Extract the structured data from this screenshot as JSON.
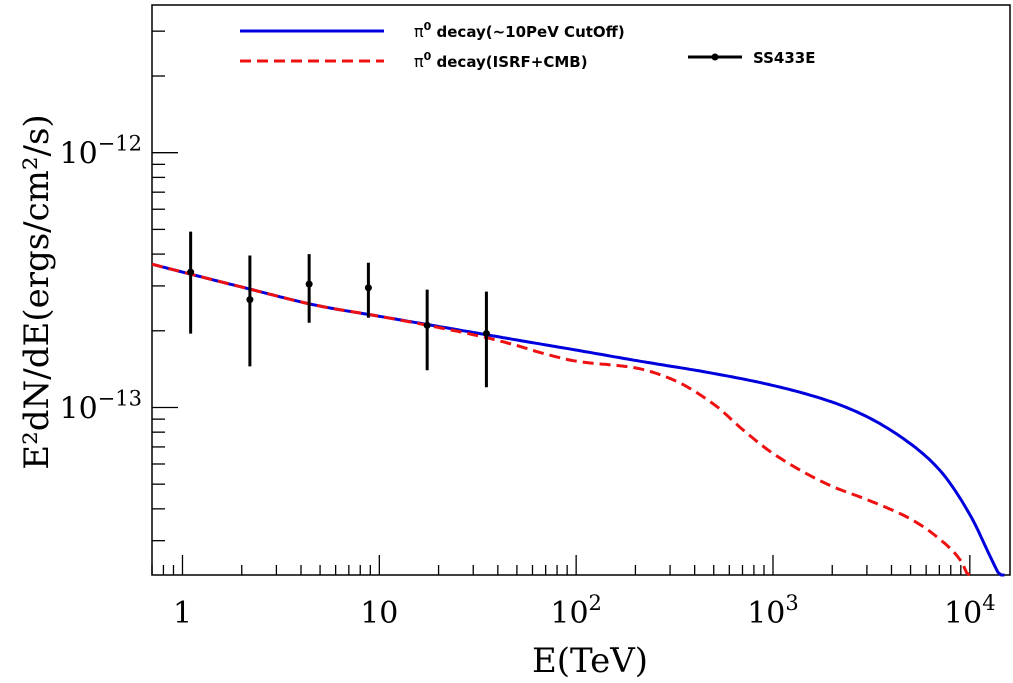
{
  "chart_data": {
    "type": "line",
    "xlabel": "E(TeV)",
    "ylabel": "E²dN/dE(ergs/cm²/s)",
    "x_scale": "log",
    "y_scale": "log",
    "xlim": [
      0.7,
      16000
    ],
    "ylim": [
      2.2e-14,
      3.8e-12
    ],
    "grid": false,
    "legend_position": "top",
    "x_tick_labels": [
      {
        "value": 1,
        "base": "1",
        "exp": ""
      },
      {
        "value": 10,
        "base": "10",
        "exp": ""
      },
      {
        "value": 100,
        "base": "10",
        "exp": "2"
      },
      {
        "value": 1000,
        "base": "10",
        "exp": "3"
      },
      {
        "value": 10000,
        "base": "10",
        "exp": "4"
      }
    ],
    "y_tick_labels": [
      {
        "value": 1e-12,
        "base": "10",
        "exp": "−12"
      },
      {
        "value": 1e-13,
        "base": "10",
        "exp": "−13"
      }
    ],
    "series": [
      {
        "name": "π⁰ decay(~10PeV CutOff)",
        "legend_base": "π",
        "legend_sup": "0",
        "legend_rest": " decay(~10PeV CutOff)",
        "style": "solid",
        "color": "#0000dd",
        "x": [
          0.7,
          1,
          2,
          5,
          10,
          20,
          50,
          100,
          200,
          500,
          1000,
          2000,
          3000,
          5000,
          7000,
          10000,
          13000,
          15000
        ],
        "y": [
          3.65e-13,
          3.4e-13,
          2.97e-13,
          2.5e-13,
          2.28e-13,
          2.08e-13,
          1.84e-13,
          1.68e-13,
          1.53e-13,
          1.36e-13,
          1.22e-13,
          1.05e-13,
          9.2e-14,
          7.2e-14,
          5.7e-14,
          3.8e-14,
          2.5e-14,
          2e-14
        ]
      },
      {
        "name": "π⁰ decay(ISRF+CMB)",
        "legend_base": "π",
        "legend_sup": "0",
        "legend_rest": " decay(ISRF+CMB)",
        "style": "dashed",
        "color": "#ee1111",
        "x": [
          0.7,
          1,
          2,
          5,
          10,
          20,
          35,
          50,
          70,
          100,
          200,
          300,
          500,
          700,
          1000,
          2000,
          3000,
          5000,
          7000,
          9000,
          10000
        ],
        "y": [
          3.65e-13,
          3.4e-13,
          2.97e-13,
          2.5e-13,
          2.28e-13,
          2.06e-13,
          1.88e-13,
          1.75e-13,
          1.62e-13,
          1.52e-13,
          1.43e-13,
          1.3e-13,
          1.03e-13,
          8.2e-14,
          6.6e-14,
          4.9e-14,
          4.35e-14,
          3.65e-14,
          3.05e-14,
          2.5e-14,
          2.1e-14
        ]
      },
      {
        "name": "SS433E",
        "style": "points",
        "color": "#000000",
        "x": [
          1.1,
          2.2,
          4.4,
          8.8,
          17.5,
          35
        ],
        "y": [
          3.4e-13,
          2.65e-13,
          3.05e-13,
          2.95e-13,
          2.1e-13,
          1.95e-13
        ],
        "y_low": [
          1.95e-13,
          1.45e-13,
          2.15e-13,
          2.25e-13,
          1.4e-13,
          1.2e-13
        ],
        "y_high": [
          4.9e-13,
          3.95e-13,
          4e-13,
          3.7e-13,
          2.9e-13,
          2.85e-13
        ]
      }
    ]
  }
}
